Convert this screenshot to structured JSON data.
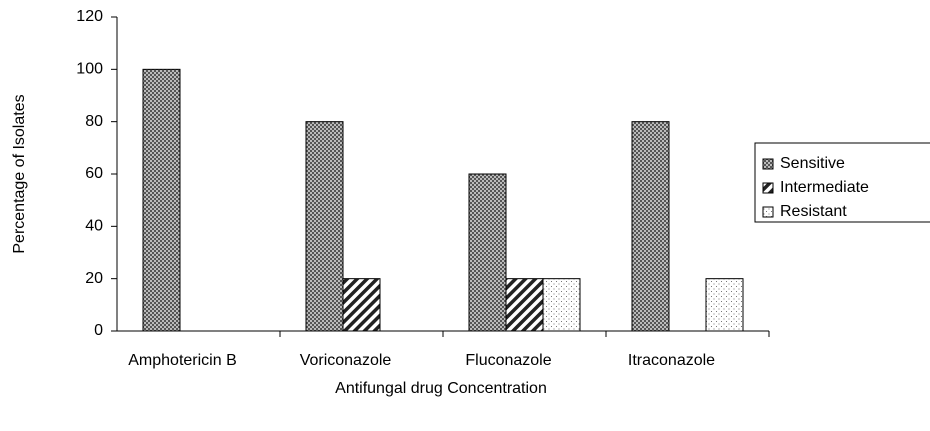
{
  "chart_data": {
    "type": "bar",
    "xlabel": "Antifungal drug Concentration",
    "ylabel": "Percentage of Isolates",
    "categories": [
      "Amphotericin B",
      "Voriconazole",
      "Fluconazole",
      "Itraconazole"
    ],
    "series": [
      {
        "name": "Sensitive",
        "color": "#555555",
        "values": [
          100,
          80,
          60,
          80
        ]
      },
      {
        "name": "Intermediate",
        "color": "#222222",
        "values": [
          0,
          20,
          20,
          0
        ]
      },
      {
        "name": "Resistant",
        "color": "#777777",
        "values": [
          0,
          0,
          20,
          20
        ]
      }
    ],
    "ylim": [
      0,
      120
    ],
    "yticks": [
      0,
      20,
      40,
      60,
      80,
      100,
      120
    ],
    "legend": "right"
  }
}
